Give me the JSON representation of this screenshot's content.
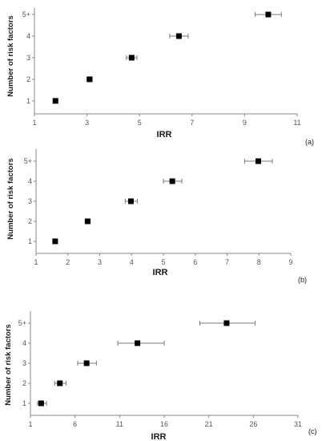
{
  "figure": {
    "panel_labels": [
      "(a)",
      "(b)",
      "(c)"
    ]
  },
  "chart_data": [
    {
      "type": "scatter",
      "panel": "(a)",
      "xlabel": "IRR",
      "ylabel": "Number of risk factors",
      "x_ticks": [
        "1",
        "3",
        "5",
        "7",
        "9",
        "11"
      ],
      "y_ticks": [
        "1",
        "2",
        "3",
        "4",
        "5+"
      ],
      "xlim": [
        1,
        11
      ],
      "ylim": [
        0.4,
        5.3
      ],
      "marker_color": "#000000",
      "error_bar_color": "#7a7a7a",
      "points": [
        {
          "category": "1",
          "y": 1,
          "x": 1.8,
          "xerr_low": 1.72,
          "xerr_high": 1.88
        },
        {
          "category": "2",
          "y": 2,
          "x": 3.1,
          "xerr_low": 3.0,
          "xerr_high": 3.2
        },
        {
          "category": "3",
          "y": 3,
          "x": 4.7,
          "xerr_low": 4.5,
          "xerr_high": 4.9
        },
        {
          "category": "4",
          "y": 4,
          "x": 6.5,
          "xerr_low": 6.15,
          "xerr_high": 6.85
        },
        {
          "category": "5+",
          "y": 5,
          "x": 9.9,
          "xerr_low": 9.4,
          "xerr_high": 10.4
        }
      ]
    },
    {
      "type": "scatter",
      "panel": "(b)",
      "xlabel": "IRR",
      "ylabel": "Number of risk factors",
      "x_ticks": [
        "1",
        "2",
        "3",
        "4",
        "5",
        "6",
        "7",
        "8",
        "9"
      ],
      "y_ticks": [
        "1",
        "2",
        "3",
        "4",
        "5+"
      ],
      "xlim": [
        1,
        9
      ],
      "ylim": [
        0.4,
        5.6
      ],
      "marker_color": "#000000",
      "error_bar_color": "#7a7a7a",
      "points": [
        {
          "category": "1",
          "y": 1,
          "x": 1.6,
          "xerr_low": 1.55,
          "xerr_high": 1.67
        },
        {
          "category": "2",
          "y": 2,
          "x": 2.62,
          "xerr_low": 2.55,
          "xerr_high": 2.7
        },
        {
          "category": "3",
          "y": 3,
          "x": 3.98,
          "xerr_low": 3.8,
          "xerr_high": 4.18
        },
        {
          "category": "4",
          "y": 4,
          "x": 5.28,
          "xerr_low": 5.0,
          "xerr_high": 5.58
        },
        {
          "category": "5+",
          "y": 5,
          "x": 7.98,
          "xerr_low": 7.55,
          "xerr_high": 8.42
        }
      ]
    },
    {
      "type": "scatter",
      "panel": "(c)",
      "xlabel": "IRR",
      "ylabel": "Number of risk factors",
      "x_ticks": [
        "1",
        "6",
        "11",
        "16",
        "21",
        "26",
        "31"
      ],
      "y_ticks": [
        "1",
        "2",
        "3",
        "4",
        "5+"
      ],
      "xlim": [
        1,
        31
      ],
      "ylim": [
        0.4,
        5.6
      ],
      "marker_color": "#000000",
      "error_bar_color": "#7a7a7a",
      "points": [
        {
          "category": "1",
          "y": 1,
          "x": 2.2,
          "xerr_low": 1.8,
          "xerr_high": 2.8
        },
        {
          "category": "2",
          "y": 2,
          "x": 4.3,
          "xerr_low": 3.7,
          "xerr_high": 5.0
        },
        {
          "category": "3",
          "y": 3,
          "x": 7.3,
          "xerr_low": 6.3,
          "xerr_high": 8.4
        },
        {
          "category": "4",
          "y": 4,
          "x": 13.0,
          "xerr_low": 10.8,
          "xerr_high": 16.0
        },
        {
          "category": "5+",
          "y": 5,
          "x": 23.0,
          "xerr_low": 20.0,
          "xerr_high": 26.2
        }
      ]
    }
  ]
}
